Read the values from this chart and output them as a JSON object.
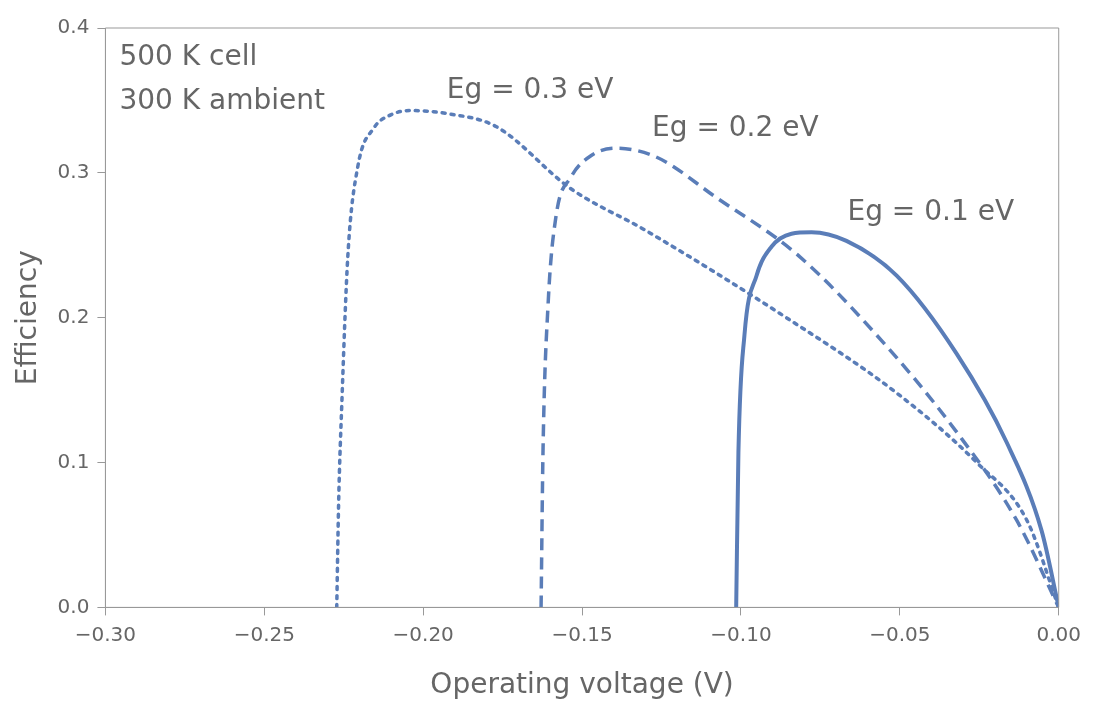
{
  "chart_data": {
    "type": "line",
    "xlabel": "Operating voltage (V)",
    "ylabel": "Efficiency",
    "xlim": [
      -0.3,
      0
    ],
    "ylim": [
      0,
      0.4
    ],
    "xticks": [
      {
        "value": -0.3,
        "label": "−0.30"
      },
      {
        "value": -0.25,
        "label": "−0.25"
      },
      {
        "value": -0.2,
        "label": "−0.20"
      },
      {
        "value": -0.15,
        "label": "−0.15"
      },
      {
        "value": -0.1,
        "label": "−0.10"
      },
      {
        "value": -0.05,
        "label": "−0.05"
      },
      {
        "value": 0,
        "label": "0.00"
      }
    ],
    "yticks": [
      {
        "value": 0,
        "label": "0.0"
      },
      {
        "value": 0.1,
        "label": "0.1"
      },
      {
        "value": 0.2,
        "label": "0.2"
      },
      {
        "value": 0.3,
        "label": "0.3"
      },
      {
        "value": 0.4,
        "label": "0.4"
      }
    ],
    "grid": false,
    "legend": false,
    "marker": "none",
    "series": [
      {
        "name": "Eg = 0.3 eV",
        "color": "#5a7db8",
        "line_style": "dotted",
        "x": [
          -0.2272,
          -0.2266,
          -0.2256,
          -0.2237,
          -0.2206,
          -0.2155,
          -0.2102,
          -0.2039,
          -0.1928,
          -0.1771,
          -0.1535,
          -0.1298,
          -0.0857,
          -0.051,
          -0.0258,
          -0.01,
          0
        ],
        "values": [
          0,
          0.073,
          0.141,
          0.243,
          0.304,
          0.331,
          0.34,
          0.343,
          0.341,
          0.332,
          0.289,
          0.26,
          0.2,
          0.148,
          0.1,
          0.06,
          0
        ]
      },
      {
        "name": "Eg = 0.2 eV",
        "color": "#5a7db8",
        "line_style": "dashed",
        "x": [
          -0.1629,
          -0.1623,
          -0.1607,
          -0.1582,
          -0.1535,
          -0.1471,
          -0.1393,
          -0.1267,
          -0.1078,
          -0.0825,
          -0.0573,
          -0.0321,
          -0.0132,
          0
        ],
        "values": [
          0,
          0.107,
          0.209,
          0.27,
          0.297,
          0.312,
          0.317,
          0.311,
          0.283,
          0.244,
          0.188,
          0.121,
          0.06,
          0
        ]
      },
      {
        "name": "Eg = 0.1 eV",
        "color": "#5a7db8",
        "line_style": "solid",
        "x": [
          -0.1015,
          -0.1008,
          -0.0989,
          -0.0951,
          -0.0904,
          -0.0841,
          -0.0778,
          -0.0668,
          -0.051,
          -0.0321,
          -0.0164,
          -0.0054,
          0
        ],
        "values": [
          0,
          0.107,
          0.188,
          0.229,
          0.249,
          0.258,
          0.259,
          0.253,
          0.229,
          0.175,
          0.114,
          0.053,
          0
        ]
      }
    ],
    "annotations": [
      "500 K cell",
      "300 K ambient"
    ]
  }
}
